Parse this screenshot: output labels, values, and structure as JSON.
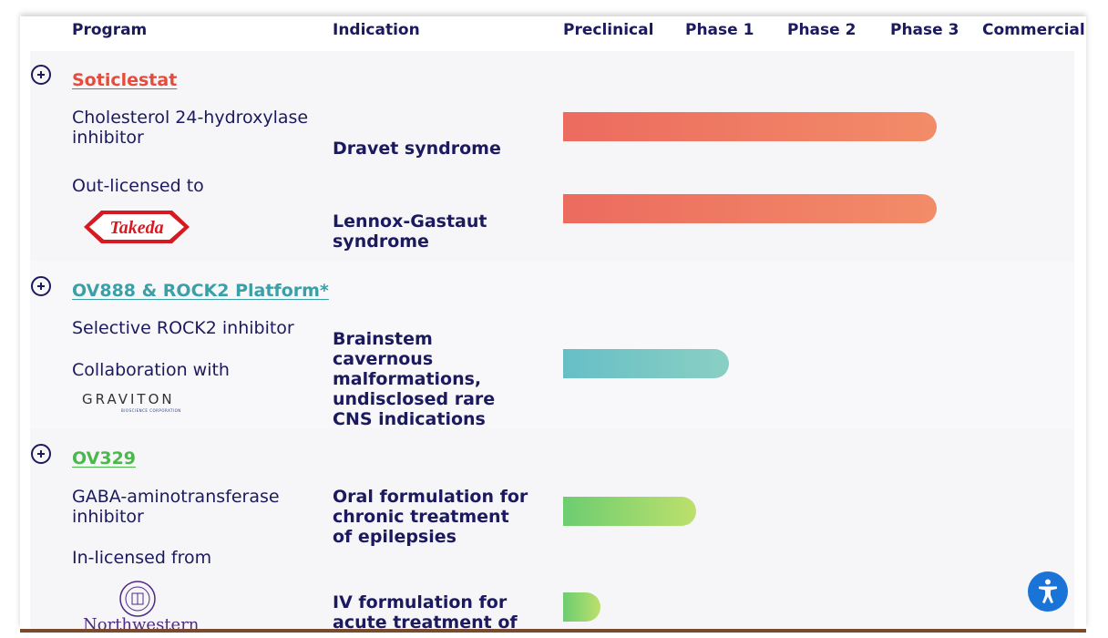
{
  "header": {
    "program": "Program",
    "indication": "Indication",
    "preclinical": "Preclinical",
    "phase1": "Phase 1",
    "phase2": "Phase 2",
    "phase3": "Phase 3",
    "commercial": "Commercial"
  },
  "programs": [
    {
      "name": "Soticlestat",
      "color": "#e64c3c",
      "desc": "Cholesterol 24-hydroxylase inhibitor",
      "partner_label": "Out-licensed to",
      "partner_logo": "Takeda",
      "indications": [
        {
          "label": "Dravet syndrome",
          "stage": "Phase 3",
          "progress": 0.9
        },
        {
          "label": "Lennox-Gastaut syndrome",
          "stage": "Phase 3",
          "progress": 0.9
        }
      ],
      "bar_colors": [
        "#ec6b5f",
        "#f28c68"
      ]
    },
    {
      "name": "OV888 & ROCK2 Platform*",
      "color": "#3aa0a8",
      "desc": "Selective ROCK2 inhibitor",
      "partner_label": "Collaboration with",
      "partner_logo": "GRAVITON",
      "partner_logo_sub": "BIOSCIENCE CORPORATION",
      "indications": [
        {
          "label": "Brainstem cavernous malformations, undisclosed rare CNS indications",
          "stage": "Phase 1",
          "progress": 0.4
        }
      ],
      "bar_colors": [
        "#66bfc6",
        "#8acfc4"
      ]
    },
    {
      "name": "OV329",
      "color": "#4cb84c",
      "desc": "GABA-aminotransferase inhibitor",
      "partner_label": "In-licensed from",
      "partner_logo": "Northwestern",
      "indications": [
        {
          "label": "Oral formulation for chronic treatment of epilepsies",
          "stage": "Phase 1",
          "progress": 0.32
        },
        {
          "label": "IV formulation for acute treatment of seizures",
          "stage": "Preclinical",
          "progress": 0.09
        }
      ],
      "bar_colors": [
        "#6ccd70",
        "#bde06c"
      ]
    }
  ],
  "icons": {
    "expand": "plus-circle-icon",
    "accessibility": "accessibility-icon"
  }
}
